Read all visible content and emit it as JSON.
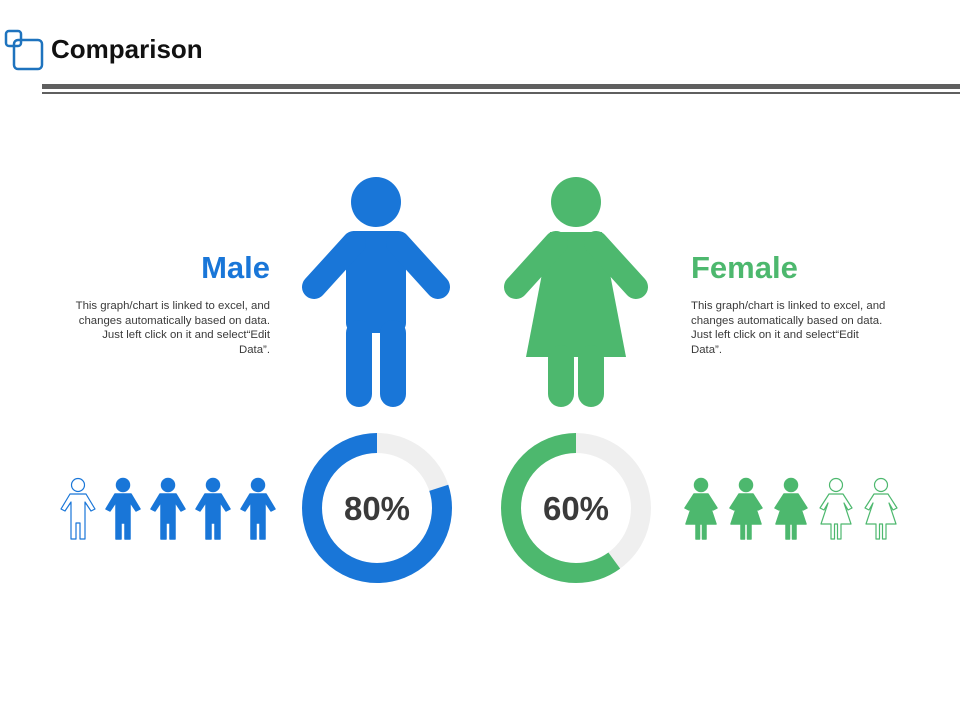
{
  "header": {
    "title": "Comparison"
  },
  "male": {
    "label": "Male",
    "description": "This graph/chart is linked to excel, and changes automatically based on data. Just left click on it and select“Edit Data”.",
    "percent_label": "80%",
    "icons_total": 5,
    "icons_filled": 4
  },
  "female": {
    "label": "Female",
    "description": "This graph/chart is linked to excel, and changes automatically based on data. Just left click on it and select“Edit Data”.",
    "percent_label": "60%",
    "icons_total": 5,
    "icons_filled": 3
  },
  "colors": {
    "male": "#1976D8",
    "female": "#4DB86E",
    "track": "#EFEFEF",
    "rule": "#5F5F5F",
    "logo": "#1E73BE"
  },
  "chart_data": [
    {
      "type": "pie",
      "categories": [
        "Male",
        "Female"
      ],
      "values": [
        80,
        60
      ],
      "unit": "%"
    }
  ]
}
